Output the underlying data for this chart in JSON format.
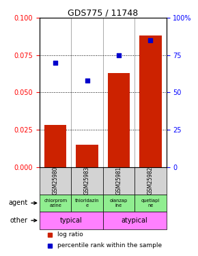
{
  "title": "GDS775 / 11748",
  "samples": [
    "GSM25980",
    "GSM25983",
    "GSM25981",
    "GSM25982"
  ],
  "log_ratio": [
    0.028,
    0.015,
    0.063,
    0.088
  ],
  "percentile_pct": [
    70,
    58,
    75,
    85
  ],
  "ylim_left": [
    0,
    0.1
  ],
  "ylim_right": [
    0,
    100
  ],
  "yticks_left": [
    0,
    0.025,
    0.05,
    0.075,
    0.1
  ],
  "yticks_right": [
    0,
    25,
    50,
    75,
    100
  ],
  "ytick_right_labels": [
    "0",
    "25",
    "50",
    "75",
    "100%"
  ],
  "agent_labels": [
    "chlorprom\nazine",
    "thioridazin\ne",
    "olanzap\nine",
    "quetiapi\nne"
  ],
  "agent_bg": "#90EE90",
  "other_bg": "#FF80FF",
  "bar_color": "#CC2200",
  "dot_color": "#0000CC",
  "sample_bg": "#D3D3D3",
  "bar_width": 0.7
}
